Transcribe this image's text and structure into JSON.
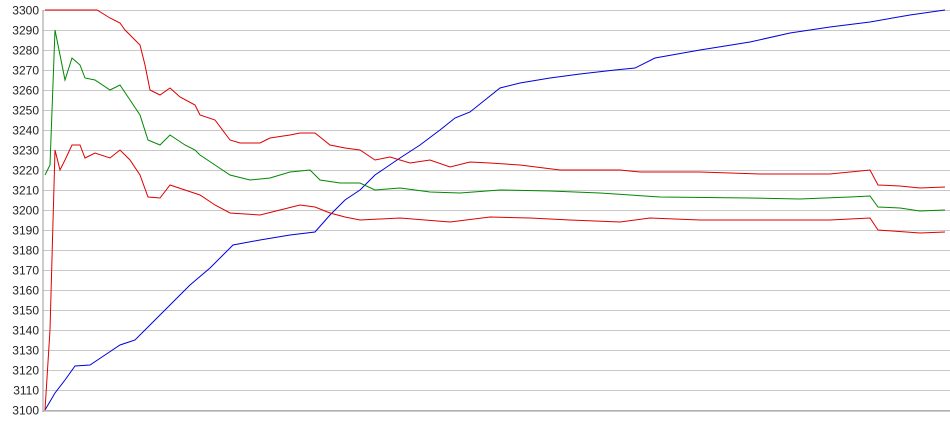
{
  "chart_data": {
    "type": "line",
    "title": "",
    "xlabel": "",
    "ylabel": "",
    "ylim": [
      3100,
      3300
    ],
    "xlim": [
      0,
      900
    ],
    "yticks": [
      3100,
      3110,
      3120,
      3130,
      3140,
      3150,
      3160,
      3170,
      3180,
      3190,
      3200,
      3210,
      3220,
      3230,
      3240,
      3250,
      3260,
      3270,
      3280,
      3290,
      3300
    ],
    "grid": "horizontal",
    "legend": "none",
    "series": [
      {
        "color": "#0000dd",
        "points": [
          [
            0,
            3100
          ],
          [
            10,
            3108.5
          ],
          [
            20,
            3115
          ],
          [
            30,
            3122
          ],
          [
            45,
            3122.5
          ],
          [
            60,
            3127.5
          ],
          [
            75,
            3132.5
          ],
          [
            90,
            3135
          ],
          [
            105,
            3142.5
          ],
          [
            125,
            3152.5
          ],
          [
            145,
            3162.5
          ],
          [
            165,
            3171
          ],
          [
            188,
            3182.5
          ],
          [
            215,
            3185
          ],
          [
            245,
            3187.5
          ],
          [
            270,
            3189
          ],
          [
            285,
            3197.5
          ],
          [
            300,
            3205
          ],
          [
            315,
            3210
          ],
          [
            330,
            3217.5
          ],
          [
            355,
            3226
          ],
          [
            375,
            3232.5
          ],
          [
            395,
            3240
          ],
          [
            410,
            3246
          ],
          [
            425,
            3249
          ],
          [
            440,
            3255
          ],
          [
            455,
            3261
          ],
          [
            475,
            3263.5
          ],
          [
            505,
            3266
          ],
          [
            535,
            3268
          ],
          [
            570,
            3270
          ],
          [
            590,
            3271
          ],
          [
            610,
            3276
          ],
          [
            655,
            3280
          ],
          [
            705,
            3284
          ],
          [
            745,
            3288.5
          ],
          [
            785,
            3291.5
          ],
          [
            825,
            3294
          ],
          [
            865,
            3297.5
          ],
          [
            900,
            3300
          ]
        ]
      },
      {
        "color": "#dd0000",
        "points": [
          [
            0,
            3300
          ],
          [
            52,
            3300
          ],
          [
            65,
            3296
          ],
          [
            75,
            3293.5
          ],
          [
            80,
            3290
          ],
          [
            95,
            3282.5
          ],
          [
            100,
            3272.5
          ],
          [
            105,
            3260
          ],
          [
            115,
            3257.5
          ],
          [
            125,
            3261
          ],
          [
            135,
            3256.5
          ],
          [
            150,
            3252.5
          ],
          [
            155,
            3247.5
          ],
          [
            170,
            3245
          ],
          [
            185,
            3235
          ],
          [
            195,
            3233.5
          ],
          [
            215,
            3233.5
          ],
          [
            225,
            3236
          ],
          [
            245,
            3237.5
          ],
          [
            255,
            3238.5
          ],
          [
            270,
            3238.5
          ],
          [
            285,
            3232.5
          ],
          [
            300,
            3231
          ],
          [
            315,
            3230
          ],
          [
            330,
            3225
          ],
          [
            345,
            3226.5
          ],
          [
            365,
            3223.5
          ],
          [
            385,
            3225
          ],
          [
            405,
            3221.5
          ],
          [
            425,
            3224
          ],
          [
            445,
            3223.5
          ],
          [
            475,
            3222.5
          ],
          [
            515,
            3220
          ],
          [
            575,
            3220
          ],
          [
            595,
            3219
          ],
          [
            655,
            3219
          ],
          [
            715,
            3218
          ],
          [
            785,
            3218
          ],
          [
            825,
            3220
          ],
          [
            833,
            3212.5
          ],
          [
            855,
            3212
          ],
          [
            875,
            3211
          ],
          [
            900,
            3211.5
          ]
        ]
      },
      {
        "color": "#008800",
        "points": [
          [
            0,
            3217.5
          ],
          [
            5,
            3222.5
          ],
          [
            10,
            3290
          ],
          [
            15,
            3277.5
          ],
          [
            20,
            3265
          ],
          [
            27,
            3276
          ],
          [
            35,
            3272.5
          ],
          [
            40,
            3266
          ],
          [
            50,
            3265
          ],
          [
            65,
            3260
          ],
          [
            75,
            3262.5
          ],
          [
            85,
            3255
          ],
          [
            95,
            3247.5
          ],
          [
            103,
            3235
          ],
          [
            115,
            3232.5
          ],
          [
            125,
            3237.5
          ],
          [
            140,
            3232.5
          ],
          [
            150,
            3230
          ],
          [
            155,
            3227.5
          ],
          [
            170,
            3222.5
          ],
          [
            185,
            3217.5
          ],
          [
            205,
            3215
          ],
          [
            225,
            3216
          ],
          [
            245,
            3219
          ],
          [
            265,
            3220
          ],
          [
            275,
            3215
          ],
          [
            295,
            3213.5
          ],
          [
            315,
            3213.5
          ],
          [
            330,
            3210
          ],
          [
            355,
            3211
          ],
          [
            385,
            3209
          ],
          [
            415,
            3208.5
          ],
          [
            455,
            3210
          ],
          [
            505,
            3209.5
          ],
          [
            555,
            3208.5
          ],
          [
            615,
            3206.5
          ],
          [
            705,
            3206
          ],
          [
            755,
            3205.5
          ],
          [
            805,
            3206.5
          ],
          [
            825,
            3207
          ],
          [
            833,
            3201.5
          ],
          [
            855,
            3201
          ],
          [
            875,
            3199.5
          ],
          [
            900,
            3200
          ]
        ]
      },
      {
        "color": "#dd0000",
        "points": [
          [
            0,
            3100
          ],
          [
            5,
            3140
          ],
          [
            10,
            3230
          ],
          [
            15,
            3220
          ],
          [
            20,
            3225
          ],
          [
            27,
            3232.5
          ],
          [
            35,
            3232.5
          ],
          [
            40,
            3226
          ],
          [
            50,
            3228.5
          ],
          [
            65,
            3226
          ],
          [
            75,
            3230
          ],
          [
            85,
            3225
          ],
          [
            95,
            3217.5
          ],
          [
            103,
            3206.5
          ],
          [
            115,
            3206
          ],
          [
            125,
            3212.5
          ],
          [
            140,
            3210
          ],
          [
            155,
            3207.5
          ],
          [
            170,
            3202.5
          ],
          [
            185,
            3198.5
          ],
          [
            215,
            3197.5
          ],
          [
            235,
            3200
          ],
          [
            255,
            3202.5
          ],
          [
            270,
            3201.5
          ],
          [
            285,
            3198.5
          ],
          [
            300,
            3196.5
          ],
          [
            315,
            3195
          ],
          [
            355,
            3196
          ],
          [
            405,
            3194
          ],
          [
            445,
            3196.5
          ],
          [
            485,
            3196
          ],
          [
            525,
            3195
          ],
          [
            575,
            3194
          ],
          [
            605,
            3196
          ],
          [
            655,
            3195
          ],
          [
            715,
            3195
          ],
          [
            785,
            3195
          ],
          [
            825,
            3196
          ],
          [
            833,
            3190
          ],
          [
            875,
            3188.5
          ],
          [
            900,
            3189
          ]
        ]
      }
    ]
  }
}
